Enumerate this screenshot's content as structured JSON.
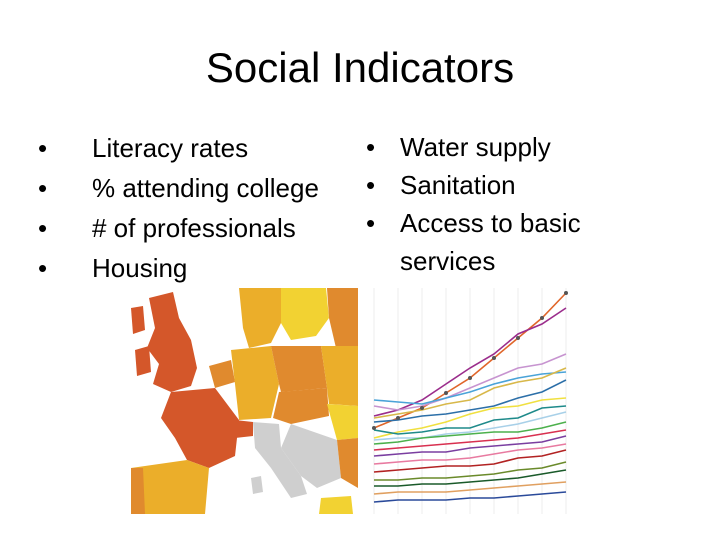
{
  "slide": {
    "title": "Social Indicators",
    "left_bullets": [
      "Literacy rates",
      "% attending college",
      "# of professionals",
      "Housing"
    ],
    "right_bullets": [
      "Water supply",
      "Sanitation",
      "Access to basic services"
    ],
    "bullet_glyph": "•"
  },
  "images": {
    "map": {
      "icon": "europe-choropleth-map-icon"
    },
    "line_chart": {
      "icon": "multi-line-chart-icon"
    }
  },
  "colors": {
    "map_dark_orange": "#d4572a",
    "map_orange": "#e08a2e",
    "map_yellow_orange": "#ebae2a",
    "map_yellow": "#f2d232",
    "map_gray": "#cfcfcf"
  }
}
